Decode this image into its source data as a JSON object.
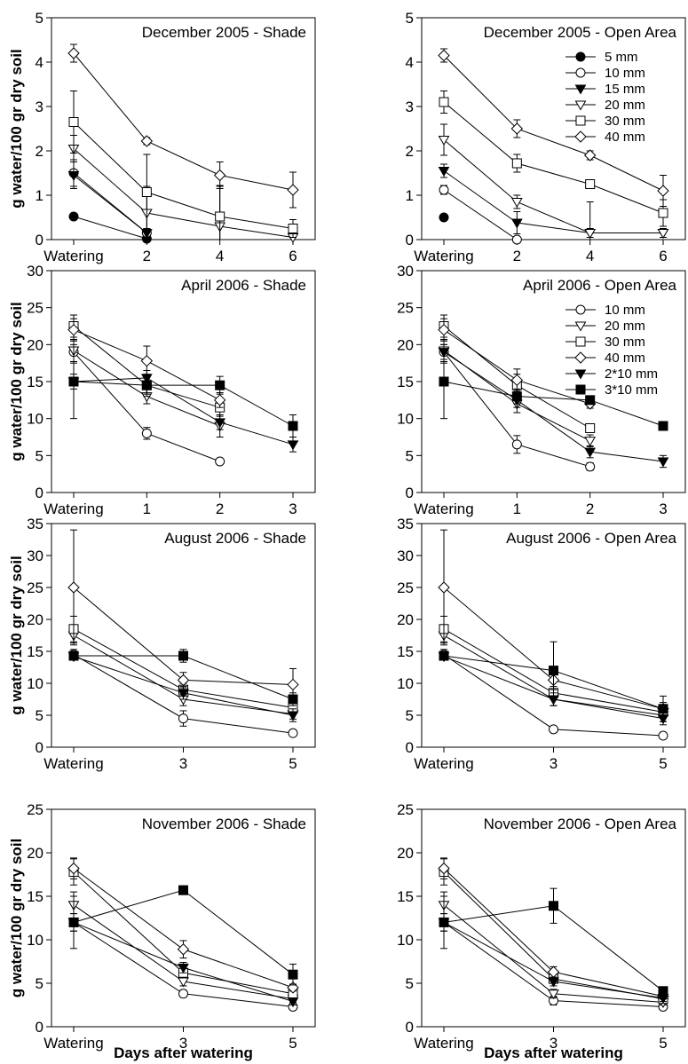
{
  "figure": {
    "ylabel": "g water/100 gr dry soil",
    "xlabel": "Days after watering"
  },
  "chart_data": [
    {
      "type": "line",
      "title": "December 2005 - Shade",
      "x_categories": [
        "Watering",
        "2",
        "4",
        "6"
      ],
      "xlabel": "",
      "ylabel": "g water/100 gr dry soil",
      "ylim": [
        0,
        5
      ],
      "yticks": [
        0,
        1,
        2,
        3,
        4,
        5
      ],
      "series": [
        {
          "name": "5 mm",
          "marker": "circle-filled",
          "y": [
            0.52,
            0.02,
            null,
            null
          ],
          "err": [
            0.06,
            0.08,
            null,
            null
          ]
        },
        {
          "name": "10 mm",
          "marker": "circle-open",
          "y": [
            1.5,
            0.15,
            null,
            null
          ],
          "err": [
            0.3,
            0.1,
            null,
            null
          ]
        },
        {
          "name": "15 mm",
          "marker": "tri-down-filled",
          "y": [
            1.45,
            0.15,
            null,
            null
          ],
          "err": [
            0.3,
            0.1,
            null,
            null
          ]
        },
        {
          "name": "20 mm",
          "marker": "tri-down-open",
          "y": [
            2.05,
            0.6,
            0.3,
            0.05
          ],
          "err": [
            0.3,
            0.6,
            0.9,
            0.1
          ]
        },
        {
          "name": "30 mm",
          "marker": "square-open",
          "y": [
            2.65,
            1.07,
            0.52,
            0.25
          ],
          "err": [
            0.7,
            0.85,
            0.7,
            0.2
          ]
        },
        {
          "name": "40 mm",
          "marker": "diamond-open",
          "y": [
            4.2,
            2.22,
            1.45,
            1.12
          ],
          "err": [
            0.2,
            0.08,
            0.3,
            0.4
          ]
        }
      ]
    },
    {
      "type": "line",
      "title": "December 2005 - Open Area",
      "x_categories": [
        "Watering",
        "2",
        "4",
        "6"
      ],
      "xlabel": "",
      "ylabel": "",
      "ylim": [
        0,
        5
      ],
      "yticks": [
        0,
        1,
        2,
        3,
        4,
        5
      ],
      "legend": {
        "position": "top-right",
        "entries": [
          "5 mm",
          "10 mm",
          "15 mm",
          "20 mm",
          "30 mm",
          "40 mm"
        ]
      },
      "series": [
        {
          "name": "5 mm",
          "marker": "circle-filled",
          "y": [
            0.5,
            null,
            null,
            null
          ],
          "err": [
            0.05,
            null,
            null,
            null
          ]
        },
        {
          "name": "10 mm",
          "marker": "circle-open",
          "y": [
            1.12,
            0.0,
            null,
            null
          ],
          "err": [
            0.1,
            0.05,
            null,
            null
          ]
        },
        {
          "name": "15 mm",
          "marker": "tri-down-filled",
          "y": [
            1.55,
            0.38,
            0.15,
            0.15
          ],
          "err": [
            0.15,
            0.25,
            0.7,
            0.1
          ]
        },
        {
          "name": "20 mm",
          "marker": "tri-down-open",
          "y": [
            2.25,
            0.85,
            0.15,
            0.15
          ],
          "err": [
            0.35,
            0.15,
            0.1,
            0.1
          ]
        },
        {
          "name": "30 mm",
          "marker": "square-open",
          "y": [
            3.1,
            1.72,
            1.25,
            0.6
          ],
          "err": [
            0.25,
            0.2,
            0.1,
            0.3
          ]
        },
        {
          "name": "40 mm",
          "marker": "diamond-open",
          "y": [
            4.15,
            2.5,
            1.9,
            1.1
          ],
          "err": [
            0.15,
            0.2,
            0.1,
            0.35
          ]
        }
      ]
    },
    {
      "type": "line",
      "title": "April 2006 - Shade",
      "x_categories": [
        "Watering",
        "1",
        "2",
        "3"
      ],
      "xlabel": "",
      "ylabel": "g water/100 gr dry soil",
      "ylim": [
        0,
        30
      ],
      "yticks": [
        0,
        5,
        10,
        15,
        20,
        25,
        30
      ],
      "series": [
        {
          "name": "10 mm",
          "marker": "circle-open",
          "y": [
            19,
            8,
            4.2,
            null
          ],
          "err": [
            1.5,
            0.8,
            0.3,
            null
          ]
        },
        {
          "name": "20 mm",
          "marker": "tri-down-open",
          "y": [
            19.2,
            13,
            9,
            null
          ],
          "err": [
            1.5,
            1,
            1.5,
            null
          ]
        },
        {
          "name": "30 mm",
          "marker": "square-open",
          "y": [
            22.5,
            14.5,
            11.5,
            null
          ],
          "err": [
            1.5,
            1.2,
            1.2,
            null
          ]
        },
        {
          "name": "40 mm",
          "marker": "diamond-open",
          "y": [
            22,
            17.8,
            12.5,
            null
          ],
          "err": [
            1.5,
            2,
            1,
            null
          ]
        },
        {
          "name": "2*10 mm",
          "marker": "tri-down-filled",
          "y": [
            15,
            15.5,
            9.5,
            6.5
          ],
          "err": [
            1,
            1,
            1,
            1
          ]
        },
        {
          "name": "3*10 mm",
          "marker": "square-filled",
          "y": [
            15,
            14.5,
            14.5,
            9
          ],
          "err": [
            5,
            1.5,
            1.2,
            1.5
          ]
        }
      ]
    },
    {
      "type": "line",
      "title": "April 2006 - Open Area",
      "x_categories": [
        "Watering",
        "1",
        "2",
        "3"
      ],
      "xlabel": "",
      "ylabel": "",
      "ylim": [
        0,
        30
      ],
      "yticks": [
        0,
        5,
        10,
        15,
        20,
        25,
        30
      ],
      "legend": {
        "position": "top-right",
        "entries": [
          "10 mm",
          "20 mm",
          "30 mm",
          "40 mm",
          "2*10 mm",
          "3*10 mm"
        ]
      },
      "series": [
        {
          "name": "10 mm",
          "marker": "circle-open",
          "y": [
            19,
            6.5,
            3.5,
            null
          ],
          "err": [
            1.5,
            1.2,
            0.5,
            null
          ]
        },
        {
          "name": "20 mm",
          "marker": "tri-down-open",
          "y": [
            19.2,
            12,
            7,
            null
          ],
          "err": [
            1.5,
            1.2,
            0.8,
            null
          ]
        },
        {
          "name": "30 mm",
          "marker": "square-open",
          "y": [
            22.5,
            14.5,
            8.7,
            null
          ],
          "err": [
            1.5,
            1.5,
            0.6,
            null
          ]
        },
        {
          "name": "40 mm",
          "marker": "diamond-open",
          "y": [
            22,
            15.2,
            12,
            null
          ],
          "err": [
            1.5,
            1.5,
            0.6,
            null
          ]
        },
        {
          "name": "2*10 mm",
          "marker": "tri-down-filled",
          "y": [
            19,
            12.5,
            5.5,
            4.2
          ],
          "err": [
            1,
            1,
            0.8,
            0.8
          ]
        },
        {
          "name": "3*10 mm",
          "marker": "square-filled",
          "y": [
            15,
            13,
            12.5,
            9
          ],
          "err": [
            5,
            1,
            0.5,
            0.5
          ]
        }
      ]
    },
    {
      "type": "line",
      "title": "August 2006 - Shade",
      "x_categories": [
        "Watering",
        "3",
        "5"
      ],
      "xlabel": "",
      "ylabel": "g water/100 gr dry soil",
      "ylim": [
        0,
        35
      ],
      "yticks": [
        0,
        5,
        10,
        15,
        20,
        25,
        30,
        35
      ],
      "series": [
        {
          "name": "10 mm",
          "marker": "circle-open",
          "y": [
            14.5,
            4.5,
            2.2
          ],
          "err": [
            0.8,
            1.2,
            0.3
          ]
        },
        {
          "name": "20 mm",
          "marker": "tri-down-open",
          "y": [
            17.5,
            7.5,
            5.2
          ],
          "err": [
            1.2,
            1,
            0.8
          ]
        },
        {
          "name": "30 mm",
          "marker": "square-open",
          "y": [
            18.5,
            9,
            6.2
          ],
          "err": [
            2,
            1,
            0.8
          ]
        },
        {
          "name": "40 mm",
          "marker": "diamond-open",
          "y": [
            25,
            10.5,
            9.8
          ],
          "err": [
            9,
            1.2,
            2.5
          ]
        },
        {
          "name": "2*10 mm",
          "marker": "tri-down-filled",
          "y": [
            14.2,
            8.5,
            5
          ],
          "err": [
            0.5,
            1,
            1
          ]
        },
        {
          "name": "3*10 mm",
          "marker": "square-filled",
          "y": [
            14.3,
            14.3,
            7.5
          ],
          "err": [
            0.5,
            1,
            1
          ]
        }
      ]
    },
    {
      "type": "line",
      "title": "August 2006 - Open Area",
      "x_categories": [
        "Watering",
        "3",
        "5"
      ],
      "xlabel": "",
      "ylabel": "",
      "ylim": [
        0,
        35
      ],
      "yticks": [
        0,
        5,
        10,
        15,
        20,
        25,
        30,
        35
      ],
      "series": [
        {
          "name": "10 mm",
          "marker": "circle-open",
          "y": [
            14.5,
            2.8,
            1.8
          ],
          "err": [
            0.8,
            0.3,
            0.2
          ]
        },
        {
          "name": "20 mm",
          "marker": "tri-down-open",
          "y": [
            17.5,
            7.5,
            5
          ],
          "err": [
            1.2,
            1,
            1
          ]
        },
        {
          "name": "30 mm",
          "marker": "square-open",
          "y": [
            18.5,
            8.5,
            5.5
          ],
          "err": [
            2,
            1,
            1
          ]
        },
        {
          "name": "40 mm",
          "marker": "diamond-open",
          "y": [
            25,
            10.5,
            6
          ],
          "err": [
            9,
            1.5,
            1
          ]
        },
        {
          "name": "2*10 mm",
          "marker": "tri-down-filled",
          "y": [
            14.2,
            7.5,
            4.5
          ],
          "err": [
            0.5,
            1,
            1
          ]
        },
        {
          "name": "3*10 mm",
          "marker": "square-filled",
          "y": [
            14.3,
            12,
            6
          ],
          "err": [
            0.5,
            4.5,
            2
          ]
        }
      ]
    },
    {
      "type": "line",
      "title": "November 2006 - Shade",
      "x_categories": [
        "Watering",
        "3",
        "5"
      ],
      "xlabel": "Days after watering",
      "ylabel": "g water/100 gr dry soil",
      "ylim": [
        0,
        25
      ],
      "yticks": [
        0,
        5,
        10,
        15,
        20,
        25
      ],
      "series": [
        {
          "name": "10 mm",
          "marker": "circle-open",
          "y": [
            12,
            3.8,
            2.3
          ],
          "err": [
            1,
            0.4,
            0.3
          ]
        },
        {
          "name": "20 mm",
          "marker": "tri-down-open",
          "y": [
            14,
            5.2,
            3.2
          ],
          "err": [
            1.5,
            0.5,
            0.4
          ]
        },
        {
          "name": "30 mm",
          "marker": "square-open",
          "y": [
            17.8,
            6.2,
            3.8
          ],
          "err": [
            1.5,
            0.5,
            0.4
          ]
        },
        {
          "name": "40 mm",
          "marker": "diamond-open",
          "y": [
            18.2,
            8.9,
            4.5
          ],
          "err": [
            1.2,
            1,
            0.4
          ]
        },
        {
          "name": "2*10 mm",
          "marker": "tri-down-filled",
          "y": [
            12,
            6.8,
            2.9
          ],
          "err": [
            1,
            0.6,
            0.4
          ]
        },
        {
          "name": "3*10 mm",
          "marker": "square-filled",
          "y": [
            12,
            15.7,
            6
          ],
          "err": [
            3,
            0.5,
            1.2
          ]
        }
      ]
    },
    {
      "type": "line",
      "title": "November 2006 - Open Area",
      "x_categories": [
        "Watering",
        "3",
        "5"
      ],
      "xlabel": "Days after watering",
      "ylabel": "",
      "ylim": [
        0,
        25
      ],
      "yticks": [
        0,
        5,
        10,
        15,
        20,
        25
      ],
      "series": [
        {
          "name": "10 mm",
          "marker": "circle-open",
          "y": [
            12,
            3,
            2.3
          ],
          "err": [
            1,
            0.5,
            0.3
          ]
        },
        {
          "name": "20 mm",
          "marker": "tri-down-open",
          "y": [
            14,
            3.8,
            2.8
          ],
          "err": [
            1.5,
            0.5,
            0.3
          ]
        },
        {
          "name": "30 mm",
          "marker": "square-open",
          "y": [
            17.8,
            5.5,
            3.2
          ],
          "err": [
            1.5,
            0.5,
            0.3
          ]
        },
        {
          "name": "40 mm",
          "marker": "diamond-open",
          "y": [
            18.2,
            6.3,
            3.5
          ],
          "err": [
            1.2,
            0.6,
            0.3
          ]
        },
        {
          "name": "2*10 mm",
          "marker": "tri-down-filled",
          "y": [
            12,
            5.2,
            3.3
          ],
          "err": [
            1,
            0.5,
            0.4
          ]
        },
        {
          "name": "3*10 mm",
          "marker": "square-filled",
          "y": [
            12,
            13.9,
            4.1
          ],
          "err": [
            3,
            2,
            0.5
          ]
        }
      ]
    }
  ]
}
